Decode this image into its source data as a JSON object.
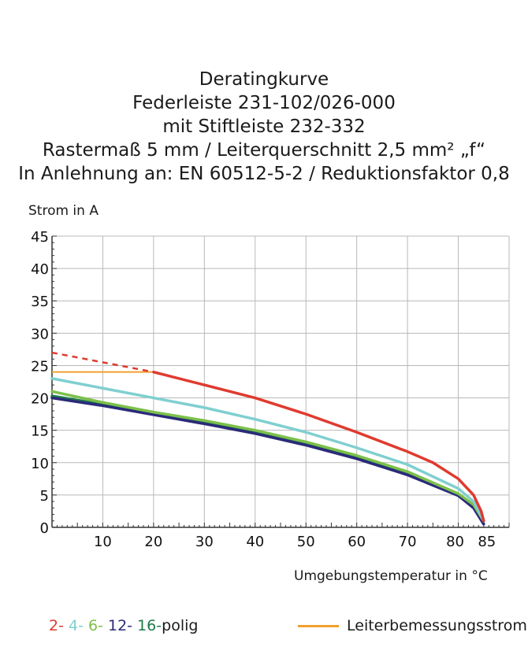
{
  "chart_data": {
    "type": "line",
    "title_lines": [
      "Deratingkurve",
      "Federleiste 231-102/026-000",
      "mit Stiftleiste 232-332",
      "Rastermaß 5 mm / Leiterquerschnitt 2,5 mm² „f“",
      "In Anlehnung an: EN 60512-5-2 / Reduktionsfaktor 0,8"
    ],
    "xlabel": "Umgebungstemperatur in  °C",
    "ylabel": "Strom in A",
    "xlim": [
      0,
      90
    ],
    "ylim": [
      0,
      45
    ],
    "xticks": [
      10,
      20,
      30,
      40,
      50,
      60,
      70,
      80,
      85
    ],
    "yticks": [
      0,
      5,
      10,
      15,
      20,
      25,
      30,
      35,
      40,
      45
    ],
    "grid": true,
    "legend_poles": [
      "2-",
      "4-",
      "6-",
      "12-",
      "16-"
    ],
    "legend_poles_suffix": "polig",
    "legend_rated": "Leiterbemessungsstrom",
    "series": [
      {
        "color": "#e03a2f",
        "points": [
          [
            20,
            24
          ],
          [
            30,
            22
          ],
          [
            40,
            20
          ],
          [
            50,
            17.5
          ],
          [
            60,
            14.7
          ],
          [
            70,
            11.7
          ],
          [
            75,
            10
          ],
          [
            80,
            7.5
          ],
          [
            83,
            5
          ],
          [
            84.5,
            2.5
          ],
          [
            85,
            1
          ]
        ],
        "dashed": [
          [
            0,
            27
          ],
          [
            20,
            24
          ]
        ]
      },
      {
        "color": "#80cfd0",
        "points": [
          [
            0,
            23
          ],
          [
            10,
            21.5
          ],
          [
            20,
            20
          ],
          [
            30,
            18.5
          ],
          [
            40,
            16.7
          ],
          [
            50,
            14.7
          ],
          [
            60,
            12.3
          ],
          [
            70,
            9.7
          ],
          [
            80,
            6
          ],
          [
            83,
            4
          ],
          [
            85,
            1
          ]
        ]
      },
      {
        "color": "#7cc04a",
        "points": [
          [
            0,
            21
          ],
          [
            10,
            19.3
          ],
          [
            20,
            17.8
          ],
          [
            30,
            16.5
          ],
          [
            40,
            15
          ],
          [
            50,
            13.2
          ],
          [
            60,
            11.1
          ],
          [
            70,
            8.6
          ],
          [
            80,
            5.2
          ],
          [
            83,
            3.5
          ],
          [
            85,
            1
          ]
        ]
      },
      {
        "color": "#2b2a7a",
        "points": [
          [
            0,
            20
          ],
          [
            10,
            18.8
          ],
          [
            20,
            17.4
          ],
          [
            30,
            16
          ],
          [
            40,
            14.5
          ],
          [
            50,
            12.7
          ],
          [
            60,
            10.6
          ],
          [
            70,
            8.1
          ],
          [
            80,
            4.9
          ],
          [
            83,
            3
          ],
          [
            85,
            0.5
          ]
        ]
      },
      {
        "color": "#1e7a4a",
        "points": [
          [
            0,
            20.3
          ],
          [
            10,
            19
          ],
          [
            20,
            17.6
          ],
          [
            30,
            16.2
          ],
          [
            40,
            14.7
          ],
          [
            50,
            12.9
          ],
          [
            60,
            10.8
          ],
          [
            70,
            8.3
          ],
          [
            80,
            5
          ],
          [
            83,
            3.2
          ],
          [
            85,
            0.5
          ]
        ]
      }
    ],
    "rated_current": {
      "color": "#f0a030",
      "points": [
        [
          0,
          24
        ],
        [
          20,
          24
        ]
      ]
    }
  }
}
